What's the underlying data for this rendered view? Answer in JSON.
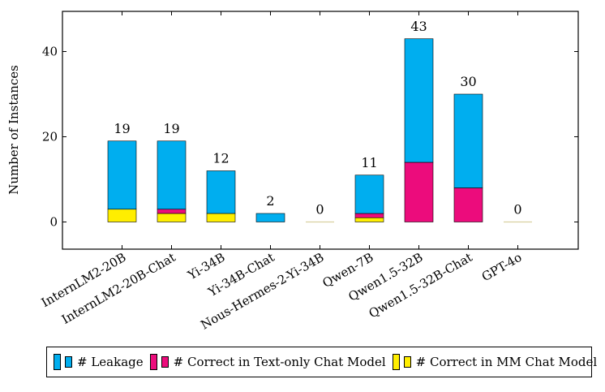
{
  "chart_data": {
    "type": "bar",
    "stacked": true,
    "ylabel": "Number of Instances",
    "xlabel": "",
    "ylim": [
      -6.5,
      49
    ],
    "yticks": [
      0,
      20,
      40
    ],
    "categories": [
      "InternLM2-20B",
      "InternLM2-20B-Chat",
      "Yi-34B",
      "Yi-34B-Chat",
      "Nous-Hermes-2-Yi-34B",
      "Qwen-7B",
      "Qwen1.5-32B",
      "Qwen1.5-32B-Chat",
      "GPT-4o"
    ],
    "totals": [
      "19",
      "19",
      "12",
      "2",
      "0",
      "11",
      "43",
      "30",
      "0"
    ],
    "series": [
      {
        "name": "# Correct in MM Chat Model",
        "color": "#ffee00",
        "values": [
          3,
          2,
          2,
          0,
          0,
          1,
          0,
          0,
          0
        ]
      },
      {
        "name": "# Correct in Text-only Chat Model",
        "color": "#ec0c7c",
        "values": [
          0,
          1,
          0,
          0,
          0,
          1,
          14,
          8,
          0
        ]
      },
      {
        "name": "# Leakage",
        "color": "#00aeef",
        "values": [
          16,
          16,
          10,
          2,
          0,
          9,
          29,
          22,
          0
        ]
      }
    ],
    "legend_position": "bottom",
    "grid": false
  },
  "legend": {
    "leakage": "# Leakage",
    "text_only": "# Correct in Text-only Chat Model",
    "mm": "# Correct in MM Chat Model"
  },
  "colors": {
    "leakage": "#00aeef",
    "text_only": "#ec0c7c",
    "mm": "#ffee00"
  }
}
